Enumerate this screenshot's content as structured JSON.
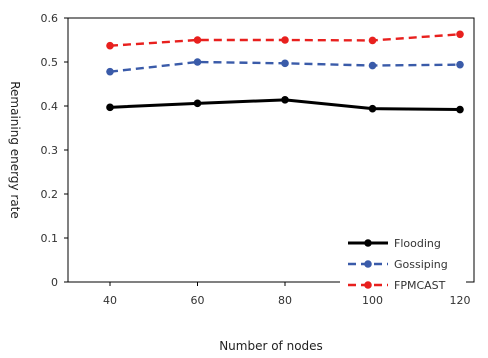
{
  "chart_data": {
    "type": "line",
    "title": "",
    "xlabel": "Number of nodes",
    "ylabel": "Remaining energy rate",
    "x": [
      "40",
      "60",
      "80",
      "100",
      "120"
    ],
    "ylim": [
      0,
      0.6
    ],
    "yticks": [
      "0",
      "0.1",
      "0.2",
      "0.3",
      "0.4",
      "0.5",
      "0.6"
    ],
    "grid": false,
    "legend_position": "bottom-right",
    "series": [
      {
        "name": "Flooding",
        "values": [
          0.397,
          0.406,
          0.414,
          0.394,
          0.392
        ],
        "color": "#000000",
        "dash": "solid"
      },
      {
        "name": "Gossiping",
        "values": [
          0.478,
          0.5,
          0.497,
          0.492,
          0.494
        ],
        "color": "#3a5ba9",
        "dash": "dashed"
      },
      {
        "name": "FPMCAST",
        "values": [
          0.537,
          0.55,
          0.55,
          0.549,
          0.563
        ],
        "color": "#e8201e",
        "dash": "dashed"
      }
    ]
  }
}
